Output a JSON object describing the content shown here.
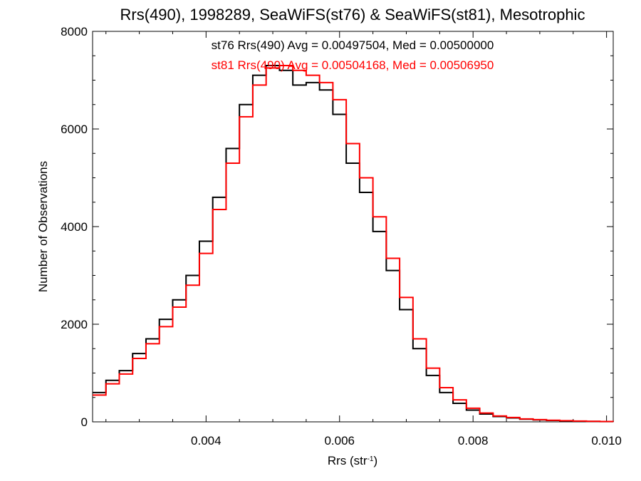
{
  "chart_data": {
    "type": "line",
    "step": true,
    "title": "Rrs(490), 1998289, SeaWiFS(st76) & SeaWiFS(st81), Mesotrophic",
    "xlabel": "Rrs (str",
    "xlabel_sup": "-1",
    "xlabel_suffix": ")",
    "ylabel": "Number of Observations",
    "xlim": [
      0.0023,
      0.0101
    ],
    "ylim": [
      0,
      8000
    ],
    "xticks": [
      0.004,
      0.006,
      0.008,
      0.01
    ],
    "xtick_labels": [
      "0.004",
      "0.006",
      "0.008",
      "0.010"
    ],
    "yticks": [
      0,
      2000,
      4000,
      6000,
      8000
    ],
    "ytick_labels": [
      "0",
      "2000",
      "4000",
      "6000",
      "8000"
    ],
    "grid": false,
    "legend_position": "top-center",
    "legend": [
      {
        "text": "st76 Rrs(490) Avg = 0.00497504, Med = 0.00500000",
        "color": "#000000"
      },
      {
        "text": "st81 Rrs(490) Avg = 0.00504168, Med = 0.00506950",
        "color": "#ff0000"
      }
    ],
    "series": [
      {
        "color": "#000000",
        "x": [
          0.0023,
          0.0025,
          0.0027,
          0.0029,
          0.0031,
          0.0033,
          0.0035,
          0.0037,
          0.0039,
          0.0041,
          0.0043,
          0.0045,
          0.0047,
          0.0049,
          0.0051,
          0.0053,
          0.0055,
          0.0057,
          0.0059,
          0.0061,
          0.0063,
          0.0065,
          0.0067,
          0.0069,
          0.0071,
          0.0073,
          0.0075,
          0.0077,
          0.0079,
          0.0081,
          0.0083,
          0.0085,
          0.0087,
          0.0089,
          0.0091,
          0.0093,
          0.0095,
          0.0097,
          0.0099,
          0.0101
        ],
        "y": [
          600,
          850,
          1050,
          1400,
          1700,
          2100,
          2500,
          3000,
          3700,
          4600,
          5600,
          6500,
          7100,
          7300,
          7200,
          6900,
          6950,
          6800,
          6300,
          5300,
          4700,
          3900,
          3100,
          2300,
          1500,
          950,
          600,
          380,
          240,
          160,
          110,
          80,
          55,
          40,
          30,
          22,
          15,
          10,
          6,
          4
        ]
      },
      {
        "color": "#ff0000",
        "x": [
          0.0023,
          0.0025,
          0.0027,
          0.0029,
          0.0031,
          0.0033,
          0.0035,
          0.0037,
          0.0039,
          0.0041,
          0.0043,
          0.0045,
          0.0047,
          0.0049,
          0.0051,
          0.0053,
          0.0055,
          0.0057,
          0.0059,
          0.0061,
          0.0063,
          0.0065,
          0.0067,
          0.0069,
          0.0071,
          0.0073,
          0.0075,
          0.0077,
          0.0079,
          0.0081,
          0.0083,
          0.0085,
          0.0087,
          0.0089,
          0.0091,
          0.0093,
          0.0095,
          0.0097,
          0.0099,
          0.0101
        ],
        "y": [
          550,
          780,
          980,
          1300,
          1600,
          1950,
          2350,
          2800,
          3450,
          4350,
          5300,
          6250,
          6900,
          7250,
          7300,
          7200,
          7100,
          6950,
          6600,
          5700,
          5000,
          4200,
          3350,
          2550,
          1700,
          1100,
          700,
          450,
          280,
          180,
          120,
          90,
          60,
          45,
          32,
          24,
          17,
          11,
          7,
          5
        ]
      }
    ]
  }
}
